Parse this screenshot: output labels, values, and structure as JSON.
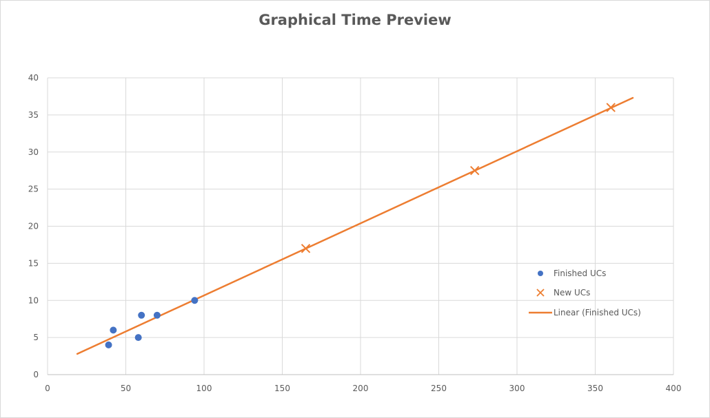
{
  "chart_data": {
    "type": "scatter",
    "title": "Graphical Time Preview",
    "xlabel": "",
    "ylabel": "",
    "xlim": [
      0,
      400
    ],
    "ylim": [
      0,
      40
    ],
    "x_ticks": [
      "0",
      "50",
      "100",
      "150",
      "200",
      "250",
      "300",
      "350",
      "400"
    ],
    "y_ticks": [
      "0",
      "5",
      "10",
      "15",
      "20",
      "25",
      "30",
      "35",
      "40"
    ],
    "grid": true,
    "legend_position": "right",
    "series": [
      {
        "name": "Finished UCs",
        "marker": "circle",
        "color": "#4472c4",
        "points": [
          {
            "x": 39,
            "y": 4
          },
          {
            "x": 42,
            "y": 6
          },
          {
            "x": 58,
            "y": 5
          },
          {
            "x": 60,
            "y": 8
          },
          {
            "x": 70,
            "y": 8
          },
          {
            "x": 94,
            "y": 10
          }
        ]
      },
      {
        "name": "New UCs",
        "marker": "x",
        "color": "#ed7d31",
        "points": [
          {
            "x": 165,
            "y": 17
          },
          {
            "x": 273,
            "y": 27.5
          },
          {
            "x": 360,
            "y": 36
          }
        ]
      },
      {
        "name": "Linear (Finished UCs)",
        "marker": "line",
        "color": "#ed7d31",
        "points": [
          {
            "x": 19,
            "y": 2.8
          },
          {
            "x": 374,
            "y": 37.3
          }
        ]
      }
    ]
  }
}
